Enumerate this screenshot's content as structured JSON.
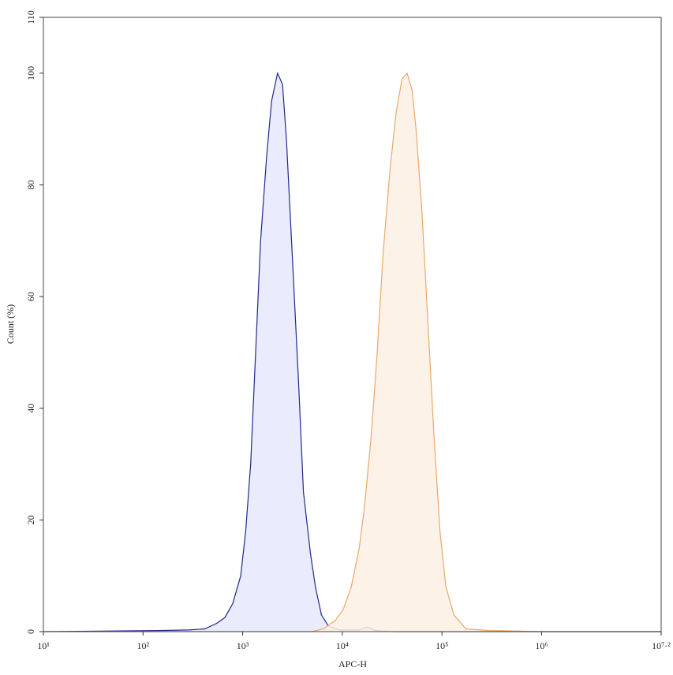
{
  "chart_data": {
    "type": "histogram-overlay",
    "xlabel": "APC-H",
    "ylabel": "Count (%)",
    "xscale": "log",
    "xlim": [
      10,
      15848932
    ],
    "xticks": [
      {
        "value": 10,
        "label": "10¹"
      },
      {
        "value": 100,
        "label": "10²"
      },
      {
        "value": 1000,
        "label": "10³"
      },
      {
        "value": 10000,
        "label": "10⁴"
      },
      {
        "value": 100000,
        "label": "10⁵"
      },
      {
        "value": 1000000,
        "label": "10⁶"
      },
      {
        "value": 15848932,
        "label": "10⁷·²"
      }
    ],
    "ylim": [
      0,
      110
    ],
    "yticks": [
      0,
      20,
      40,
      60,
      80,
      100,
      110
    ],
    "series": [
      {
        "color": "#1f2a8a",
        "fill": "#e6e8fb",
        "x": [
          10,
          141,
          288,
          417,
          550,
          661,
          794,
          955,
          1072,
          1202,
          1349,
          1514,
          1738,
          1950,
          2239,
          2512,
          2754,
          3090,
          3631,
          4074,
          4786,
          5370,
          6166,
          7244,
          9333,
          14791,
          17783,
          21380,
          33113,
          15848932
        ],
        "values": [
          0,
          0.2,
          0.3,
          0.5,
          1.5,
          2.5,
          5,
          10,
          18,
          30,
          50,
          70,
          85,
          95,
          100,
          98,
          88,
          70,
          45,
          25,
          14,
          8,
          3,
          1,
          0.3,
          0.3,
          0.8,
          0.2,
          0,
          0
        ]
      },
      {
        "color": "#e8a96a",
        "fill": "#fdf0e4",
        "x": [
          10,
          4898,
          6457,
          8511,
          10233,
          12303,
          14791,
          16596,
          19498,
          22387,
          25704,
          30200,
          34674,
          39811,
          44668,
          50119,
          54954,
          63096,
          72444,
          83176,
          95499,
          109648,
          131826,
          173780,
          295121,
          616595,
          891251,
          15848932
        ],
        "values": [
          0,
          0,
          0.5,
          2,
          4,
          8,
          15,
          22,
          35,
          50,
          68,
          83,
          93,
          99,
          100,
          97,
          90,
          75,
          55,
          35,
          18,
          8,
          3,
          0.5,
          0.2,
          0.1,
          0,
          0
        ]
      }
    ]
  }
}
